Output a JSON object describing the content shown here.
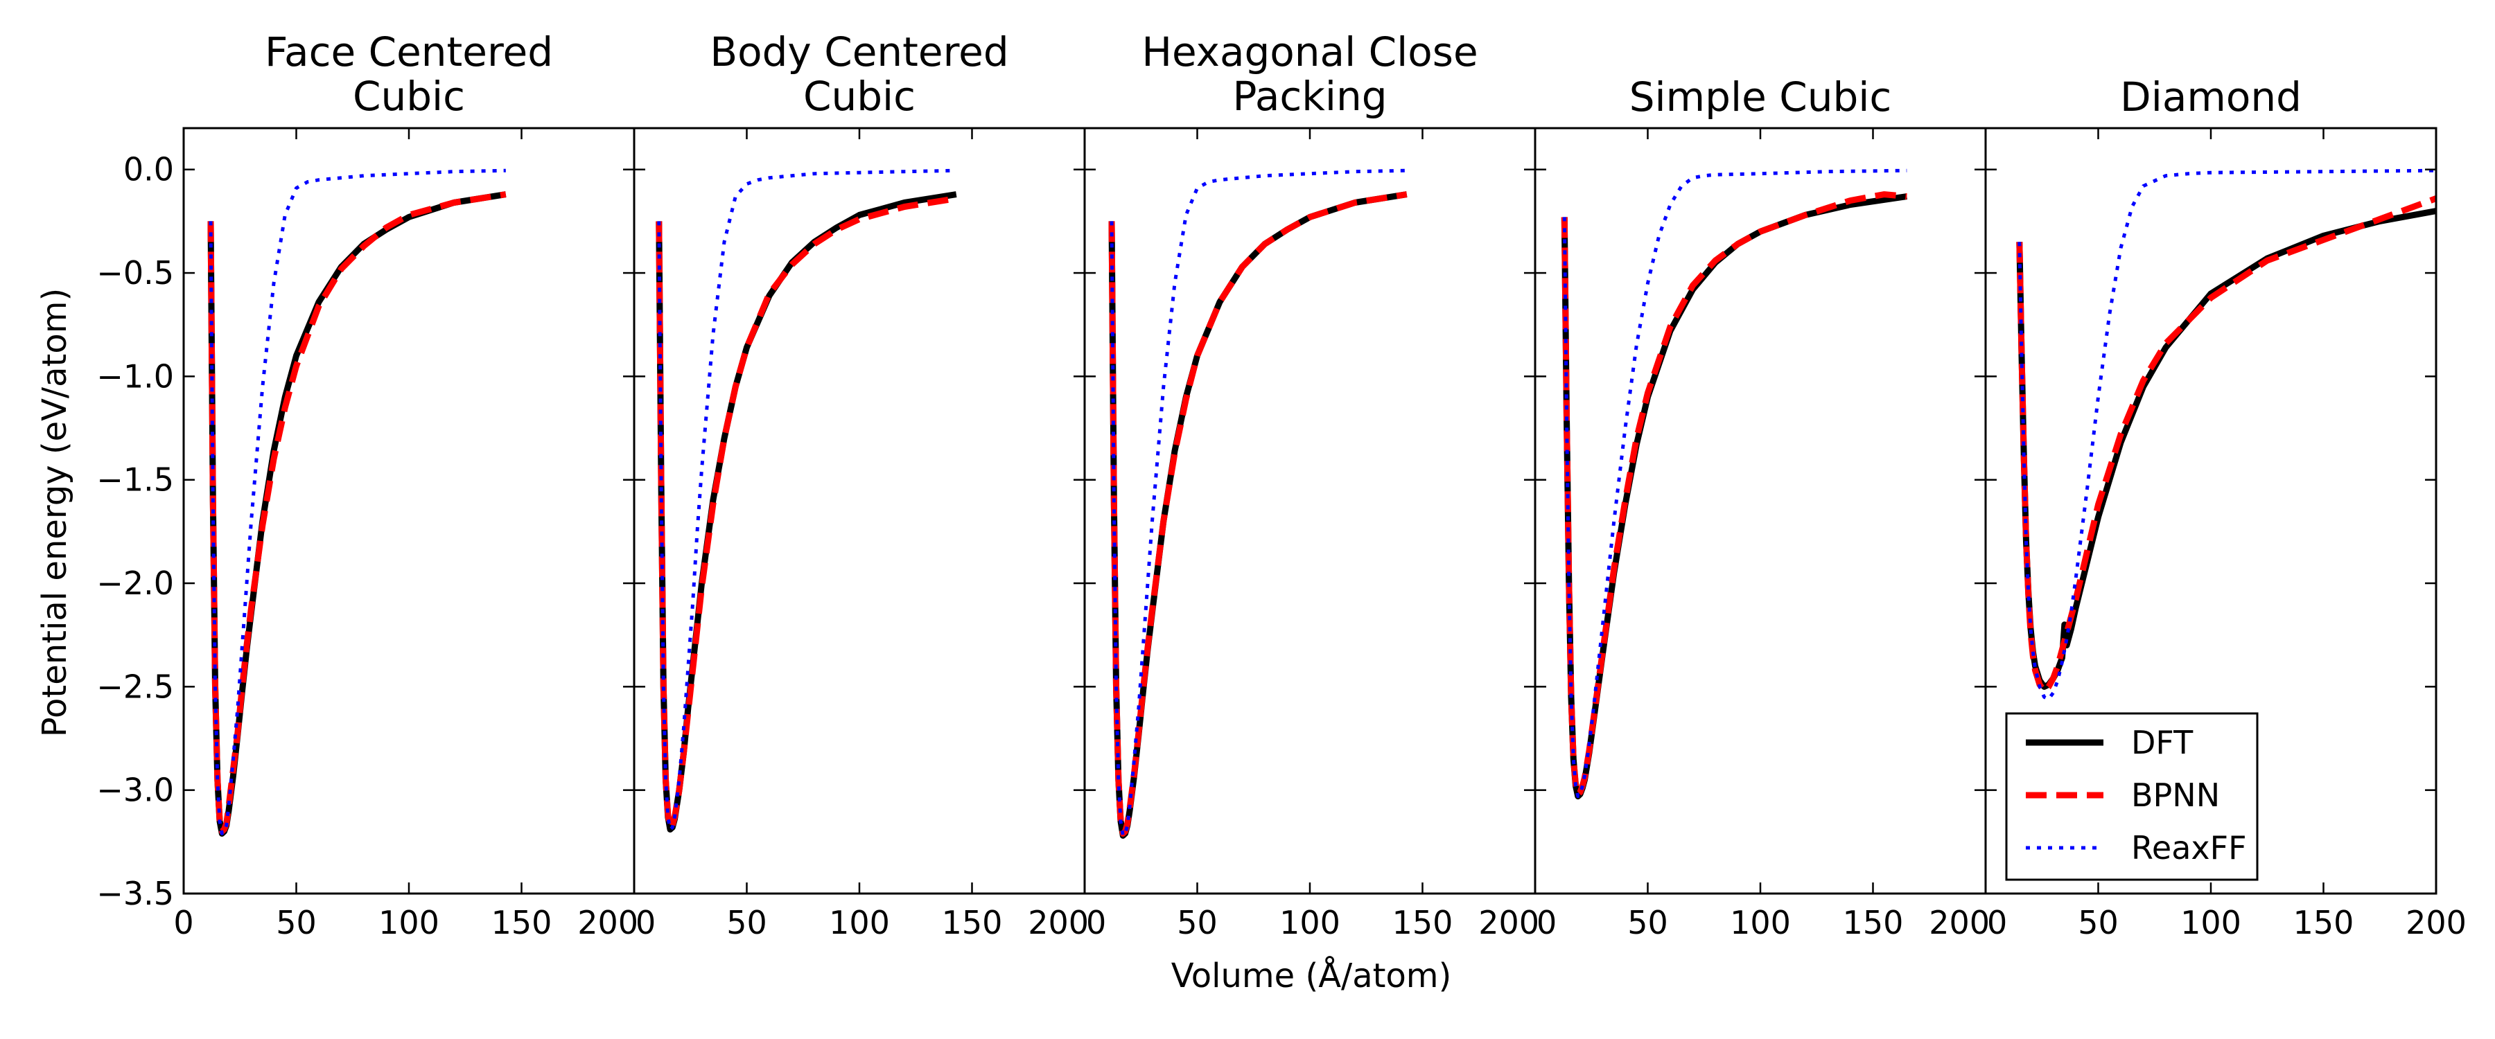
{
  "figure": {
    "xlabel": "Volume (Å/atom)",
    "ylabel": "Potential energy (eV/atom)",
    "xlim": [
      0,
      200
    ],
    "ylim": [
      -3.5,
      0.2
    ],
    "xticks": [
      0,
      50,
      100,
      150,
      200
    ],
    "yticks": [
      -3.5,
      -3.0,
      -2.5,
      -2.0,
      -1.5,
      -1.0,
      -0.5,
      0.0
    ],
    "grid": false,
    "legend": {
      "placement": "lower-right",
      "entries": [
        {
          "name": "DFT",
          "color": "#000000",
          "style": "solid"
        },
        {
          "name": "BPNN",
          "color": "#ff0000",
          "style": "dashed"
        },
        {
          "name": "ReaxFF",
          "color": "#0000ff",
          "style": "dotted"
        }
      ]
    }
  },
  "chart_data": [
    {
      "type": "line",
      "title": "Face Centered Cubic",
      "xlim": [
        0,
        200
      ],
      "ylim": [
        -3.5,
        0.2
      ],
      "series": [
        {
          "name": "DFT",
          "x": [
            12,
            13,
            14,
            15,
            16,
            17,
            18,
            19,
            20,
            22,
            24,
            26,
            28,
            30,
            35,
            40,
            45,
            50,
            60,
            70,
            80,
            90,
            100,
            120,
            143
          ],
          "y": [
            -0.25,
            -1.6,
            -2.5,
            -2.95,
            -3.15,
            -3.21,
            -3.2,
            -3.17,
            -3.1,
            -2.93,
            -2.73,
            -2.52,
            -2.32,
            -2.14,
            -1.7,
            -1.36,
            -1.1,
            -0.9,
            -0.64,
            -0.47,
            -0.36,
            -0.29,
            -0.23,
            -0.16,
            -0.12
          ]
        },
        {
          "name": "BPNN",
          "x": [
            12,
            13,
            14,
            15,
            16,
            17,
            18,
            19,
            20,
            22,
            24,
            26,
            28,
            30,
            35,
            40,
            45,
            50,
            60,
            70,
            80,
            90,
            100,
            120,
            143
          ],
          "y": [
            -0.25,
            -1.6,
            -2.5,
            -2.95,
            -3.15,
            -3.2,
            -3.19,
            -3.16,
            -3.08,
            -2.9,
            -2.72,
            -2.5,
            -2.3,
            -2.12,
            -1.72,
            -1.4,
            -1.15,
            -0.95,
            -0.66,
            -0.48,
            -0.37,
            -0.28,
            -0.22,
            -0.16,
            -0.12
          ]
        },
        {
          "name": "ReaxFF",
          "x": [
            12,
            13,
            14,
            15,
            16,
            17,
            18,
            19,
            20,
            22,
            24,
            26,
            28,
            30,
            35,
            40,
            45,
            50,
            55,
            60,
            70,
            80,
            100,
            120,
            143
          ],
          "y": [
            -0.25,
            -1.6,
            -2.5,
            -2.95,
            -3.15,
            -3.21,
            -3.2,
            -3.17,
            -3.08,
            -2.85,
            -2.6,
            -2.3,
            -2.0,
            -1.7,
            -1.05,
            -0.55,
            -0.22,
            -0.09,
            -0.06,
            -0.05,
            -0.04,
            -0.03,
            -0.02,
            -0.01,
            -0.005
          ]
        }
      ]
    },
    {
      "type": "line",
      "title": "Body Centered Cubic",
      "xlim": [
        0,
        200
      ],
      "ylim": [
        -3.5,
        0.2
      ],
      "series": [
        {
          "name": "DFT",
          "x": [
            11,
            12,
            13,
            14,
            15,
            16,
            17,
            18,
            20,
            22,
            24,
            26,
            28,
            30,
            35,
            40,
            45,
            50,
            60,
            70,
            80,
            90,
            100,
            120,
            143
          ],
          "y": [
            -0.25,
            -1.5,
            -2.5,
            -2.95,
            -3.13,
            -3.19,
            -3.18,
            -3.14,
            -3.0,
            -2.82,
            -2.6,
            -2.4,
            -2.2,
            -2.0,
            -1.6,
            -1.3,
            -1.05,
            -0.86,
            -0.61,
            -0.45,
            -0.35,
            -0.28,
            -0.22,
            -0.16,
            -0.12
          ]
        },
        {
          "name": "BPNN",
          "x": [
            11,
            12,
            13,
            14,
            15,
            16,
            17,
            18,
            20,
            22,
            24,
            26,
            28,
            30,
            35,
            40,
            45,
            50,
            60,
            70,
            80,
            90,
            100,
            120,
            143
          ],
          "y": [
            -0.25,
            -1.5,
            -2.5,
            -2.95,
            -3.12,
            -3.18,
            -3.17,
            -3.13,
            -3.0,
            -2.82,
            -2.62,
            -2.42,
            -2.22,
            -2.02,
            -1.62,
            -1.3,
            -1.05,
            -0.86,
            -0.6,
            -0.46,
            -0.36,
            -0.29,
            -0.24,
            -0.18,
            -0.14
          ]
        },
        {
          "name": "ReaxFF",
          "x": [
            11,
            12,
            13,
            14,
            15,
            16,
            17,
            18,
            20,
            22,
            24,
            26,
            28,
            30,
            35,
            40,
            45,
            50,
            55,
            60,
            70,
            80,
            100,
            120,
            143
          ],
          "y": [
            -0.25,
            -1.5,
            -2.5,
            -2.95,
            -3.13,
            -3.19,
            -3.18,
            -3.13,
            -2.95,
            -2.7,
            -2.4,
            -2.1,
            -1.75,
            -1.45,
            -0.8,
            -0.35,
            -0.13,
            -0.07,
            -0.05,
            -0.04,
            -0.03,
            -0.02,
            -0.015,
            -0.01,
            -0.005
          ]
        }
      ]
    },
    {
      "type": "line",
      "title": "Hexagonal Close Packing",
      "xlim": [
        0,
        200
      ],
      "ylim": [
        -3.5,
        0.2
      ],
      "series": [
        {
          "name": "DFT",
          "x": [
            12,
            13,
            14,
            15,
            16,
            17,
            18,
            19,
            20,
            22,
            24,
            26,
            28,
            30,
            35,
            40,
            45,
            50,
            60,
            70,
            80,
            90,
            100,
            120,
            143
          ],
          "y": [
            -0.25,
            -1.6,
            -2.5,
            -2.95,
            -3.15,
            -3.22,
            -3.21,
            -3.17,
            -3.1,
            -2.93,
            -2.73,
            -2.52,
            -2.32,
            -2.14,
            -1.7,
            -1.36,
            -1.1,
            -0.9,
            -0.64,
            -0.47,
            -0.36,
            -0.29,
            -0.23,
            -0.16,
            -0.12
          ]
        },
        {
          "name": "BPNN",
          "x": [
            12,
            13,
            14,
            15,
            16,
            17,
            18,
            19,
            20,
            22,
            24,
            26,
            28,
            30,
            35,
            40,
            45,
            50,
            60,
            70,
            80,
            90,
            100,
            120,
            143
          ],
          "y": [
            -0.25,
            -1.6,
            -2.5,
            -2.95,
            -3.15,
            -3.21,
            -3.2,
            -3.16,
            -3.09,
            -2.92,
            -2.72,
            -2.51,
            -2.31,
            -2.13,
            -1.7,
            -1.37,
            -1.11,
            -0.9,
            -0.64,
            -0.47,
            -0.36,
            -0.29,
            -0.23,
            -0.16,
            -0.12
          ]
        },
        {
          "name": "ReaxFF",
          "x": [
            12,
            13,
            14,
            15,
            16,
            17,
            18,
            19,
            20,
            22,
            24,
            26,
            28,
            30,
            35,
            40,
            45,
            50,
            55,
            60,
            70,
            80,
            100,
            120,
            143
          ],
          "y": [
            -0.25,
            -1.6,
            -2.5,
            -2.95,
            -3.15,
            -3.22,
            -3.21,
            -3.17,
            -3.08,
            -2.85,
            -2.6,
            -2.3,
            -2.0,
            -1.7,
            -1.05,
            -0.55,
            -0.22,
            -0.09,
            -0.06,
            -0.05,
            -0.04,
            -0.03,
            -0.02,
            -0.01,
            -0.005
          ]
        }
      ]
    },
    {
      "type": "line",
      "title": "Simple Cubic",
      "xlim": [
        0,
        200
      ],
      "ylim": [
        -3.5,
        0.2
      ],
      "series": [
        {
          "name": "DFT",
          "x": [
            13,
            14,
            15,
            16,
            17,
            18,
            19,
            20,
            21,
            22,
            24,
            26,
            28,
            30,
            35,
            40,
            45,
            50,
            60,
            70,
            80,
            90,
            100,
            120,
            140,
            165
          ],
          "y": [
            -0.23,
            -1.2,
            -2.0,
            -2.55,
            -2.85,
            -2.98,
            -3.03,
            -3.02,
            -2.99,
            -2.95,
            -2.82,
            -2.66,
            -2.5,
            -2.34,
            -1.95,
            -1.62,
            -1.33,
            -1.1,
            -0.78,
            -0.58,
            -0.45,
            -0.36,
            -0.3,
            -0.22,
            -0.17,
            -0.13
          ]
        },
        {
          "name": "BPNN",
          "x": [
            13,
            14,
            15,
            16,
            17,
            18,
            19,
            20,
            21,
            22,
            24,
            26,
            28,
            30,
            35,
            40,
            45,
            50,
            60,
            70,
            80,
            90,
            100,
            120,
            140,
            155,
            165
          ],
          "y": [
            -0.23,
            -1.2,
            -2.0,
            -2.55,
            -2.85,
            -2.97,
            -3.02,
            -3.01,
            -2.98,
            -2.94,
            -2.81,
            -2.65,
            -2.49,
            -2.33,
            -1.93,
            -1.6,
            -1.3,
            -1.08,
            -0.76,
            -0.56,
            -0.44,
            -0.36,
            -0.3,
            -0.22,
            -0.15,
            -0.12,
            -0.13
          ]
        },
        {
          "name": "ReaxFF",
          "x": [
            13,
            14,
            15,
            16,
            17,
            18,
            19,
            20,
            21,
            22,
            24,
            26,
            28,
            30,
            35,
            40,
            45,
            50,
            55,
            60,
            65,
            70,
            75,
            80,
            100,
            130,
            165
          ],
          "y": [
            -0.23,
            -1.2,
            -2.0,
            -2.55,
            -2.85,
            -2.98,
            -3.03,
            -3.02,
            -2.98,
            -2.93,
            -2.78,
            -2.6,
            -2.4,
            -2.2,
            -1.7,
            -1.25,
            -0.85,
            -0.55,
            -0.32,
            -0.17,
            -0.08,
            -0.04,
            -0.03,
            -0.025,
            -0.02,
            -0.01,
            -0.005
          ]
        }
      ]
    },
    {
      "type": "line",
      "title": "Diamond",
      "xlim": [
        0,
        200
      ],
      "ylim": [
        -3.5,
        0.2
      ],
      "series": [
        {
          "name": "DFT",
          "x": [
            15,
            16,
            17,
            18,
            19,
            20,
            21,
            22,
            24,
            26,
            28,
            30,
            32,
            34,
            35,
            36,
            38,
            40,
            45,
            50,
            60,
            70,
            80,
            100,
            125,
            150,
            175,
            200
          ],
          "y": [
            -0.35,
            -0.9,
            -1.4,
            -1.8,
            -2.05,
            -2.22,
            -2.33,
            -2.4,
            -2.47,
            -2.5,
            -2.49,
            -2.46,
            -2.42,
            -2.36,
            -2.2,
            -2.3,
            -2.22,
            -2.12,
            -1.9,
            -1.68,
            -1.32,
            -1.05,
            -0.86,
            -0.6,
            -0.43,
            -0.32,
            -0.25,
            -0.2
          ]
        },
        {
          "name": "BPNN",
          "x": [
            15,
            16,
            17,
            18,
            19,
            20,
            21,
            22,
            24,
            26,
            28,
            30,
            32,
            34,
            36,
            38,
            40,
            45,
            50,
            60,
            70,
            80,
            100,
            125,
            150,
            175,
            200
          ],
          "y": [
            -0.35,
            -0.9,
            -1.4,
            -1.8,
            -2.06,
            -2.24,
            -2.35,
            -2.42,
            -2.49,
            -2.52,
            -2.5,
            -2.46,
            -2.4,
            -2.32,
            -2.24,
            -2.16,
            -2.08,
            -1.85,
            -1.62,
            -1.28,
            -1.02,
            -0.84,
            -0.62,
            -0.44,
            -0.34,
            -0.24,
            -0.14
          ]
        },
        {
          "name": "ReaxFF",
          "x": [
            15,
            16,
            17,
            18,
            19,
            20,
            21,
            22,
            24,
            26,
            28,
            30,
            32,
            34,
            36,
            38,
            40,
            45,
            50,
            55,
            60,
            65,
            70,
            80,
            90,
            100,
            150,
            200
          ],
          "y": [
            -0.35,
            -0.9,
            -1.4,
            -1.8,
            -2.05,
            -2.22,
            -2.33,
            -2.41,
            -2.5,
            -2.55,
            -2.56,
            -2.53,
            -2.47,
            -2.38,
            -2.27,
            -2.14,
            -1.98,
            -1.55,
            -1.1,
            -0.7,
            -0.38,
            -0.18,
            -0.08,
            -0.03,
            -0.02,
            -0.015,
            -0.01,
            -0.005
          ]
        }
      ]
    }
  ]
}
